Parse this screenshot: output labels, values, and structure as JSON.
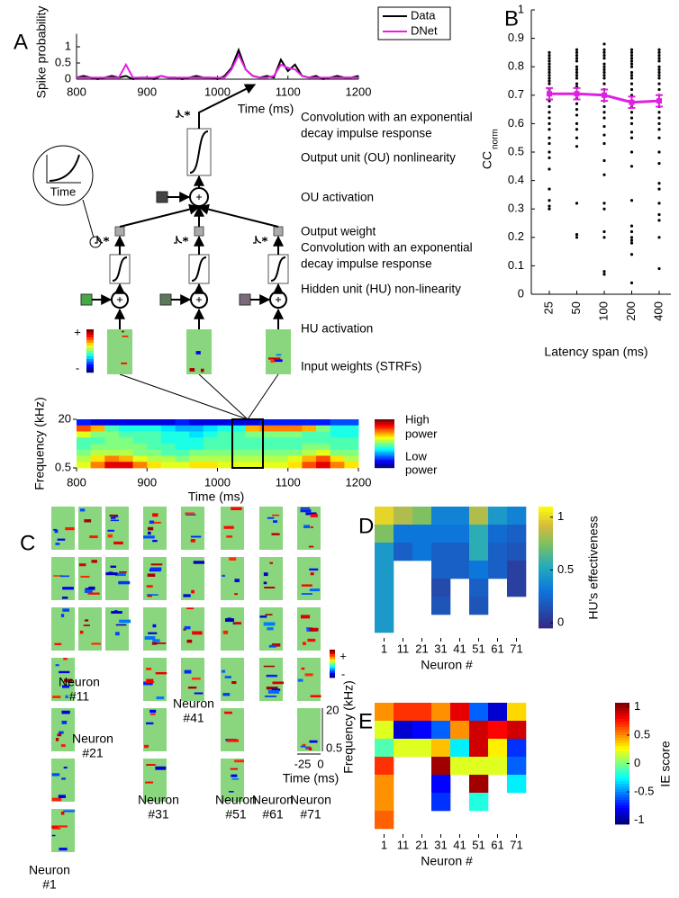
{
  "panel_labels": [
    "A",
    "B",
    "C",
    "D",
    "E"
  ],
  "chart_data": [
    {
      "type": "line",
      "xlabel": "Time (ms)",
      "ylabel": "Spike probability",
      "x": [
        800,
        810,
        820,
        830,
        840,
        850,
        860,
        870,
        880,
        890,
        900,
        910,
        920,
        930,
        940,
        950,
        960,
        970,
        980,
        990,
        1000,
        1010,
        1020,
        1030,
        1040,
        1050,
        1060,
        1070,
        1080,
        1090,
        1100,
        1110,
        1120,
        1130,
        1140,
        1150,
        1160,
        1170,
        1180,
        1190,
        1200
      ],
      "xlim": [
        800,
        1200
      ],
      "xticks": [
        800,
        900,
        1000,
        1100,
        1200
      ],
      "ylim": [
        0,
        1.4
      ],
      "yticks": [
        0,
        0.5,
        1
      ],
      "legend": "top right",
      "series": [
        {
          "name": "Data",
          "color": "#000000",
          "values": [
            0.05,
            0.1,
            0.05,
            0,
            0.05,
            0.1,
            0.05,
            0.1,
            0,
            0.05,
            0.05,
            0,
            0.1,
            0.05,
            0.05,
            0,
            0.05,
            0.1,
            0.05,
            0.05,
            0,
            0.1,
            0.35,
            0.9,
            0.3,
            0.1,
            0.05,
            0.1,
            0.05,
            0.6,
            0.25,
            0.45,
            0.1,
            0.05,
            0.1,
            0,
            0.05,
            0.1,
            0.05,
            0.05,
            0.1
          ]
        },
        {
          "name": "DNet",
          "color": "#e81ee8",
          "values": [
            0.05,
            0.05,
            0.05,
            0.05,
            0.05,
            0.05,
            0.05,
            0.45,
            0.05,
            0.05,
            0.05,
            0.05,
            0.1,
            0.05,
            0.05,
            0.05,
            0.05,
            0.05,
            0.05,
            0.05,
            0.05,
            0.05,
            0.3,
            0.75,
            0.3,
            0.1,
            0.05,
            0.05,
            0.1,
            0.45,
            0.35,
            0.3,
            0.1,
            0.05,
            0.05,
            0.05,
            0.05,
            0.05,
            0.05,
            0.05,
            0.05
          ]
        }
      ]
    },
    {
      "type": "heatmap",
      "xlabel": "Time (ms)",
      "ylabel": "Frequency (kHz)",
      "xlim": [
        800,
        1200
      ],
      "xticks": [
        800,
        900,
        1000,
        1100,
        1200
      ],
      "ylim": [
        0.5,
        20
      ],
      "yticks": [
        0.5,
        20
      ],
      "log_y": true,
      "colormap": "jet",
      "colorbar_labels": [
        [
          "High",
          "power"
        ],
        [
          "Low",
          "power"
        ]
      ],
      "values": [
        [
          0.15,
          0.1,
          0.1,
          0.1,
          0.1,
          0.1,
          0.1,
          0.15,
          0.1,
          0.1,
          0.1,
          0.1,
          0.1,
          0.15,
          0.15,
          0.15,
          0.15,
          0.15,
          0.2,
          0.2
        ],
        [
          0.8,
          0.7,
          0.45,
          0.4,
          0.4,
          0.4,
          0.35,
          0.3,
          0.3,
          0.35,
          0.4,
          0.4,
          0.7,
          0.75,
          0.75,
          0.75,
          0.7,
          0.5,
          0.4,
          0.4
        ],
        [
          0.6,
          0.5,
          0.5,
          0.45,
          0.45,
          0.45,
          0.4,
          0.4,
          0.35,
          0.4,
          0.45,
          0.45,
          0.5,
          0.5,
          0.5,
          0.5,
          0.45,
          0.45,
          0.4,
          0.4
        ],
        [
          0.45,
          0.45,
          0.5,
          0.5,
          0.45,
          0.45,
          0.4,
          0.4,
          0.4,
          0.45,
          0.45,
          0.45,
          0.45,
          0.45,
          0.45,
          0.45,
          0.45,
          0.45,
          0.45,
          0.45
        ],
        [
          0.45,
          0.5,
          0.5,
          0.5,
          0.5,
          0.45,
          0.45,
          0.4,
          0.4,
          0.45,
          0.45,
          0.45,
          0.45,
          0.45,
          0.45,
          0.45,
          0.5,
          0.5,
          0.45,
          0.45
        ],
        [
          0.5,
          0.55,
          0.55,
          0.55,
          0.5,
          0.5,
          0.45,
          0.45,
          0.5,
          0.5,
          0.5,
          0.5,
          0.5,
          0.5,
          0.5,
          0.5,
          0.55,
          0.6,
          0.5,
          0.5
        ],
        [
          0.55,
          0.65,
          0.75,
          0.7,
          0.6,
          0.55,
          0.55,
          0.5,
          0.55,
          0.55,
          0.55,
          0.55,
          0.55,
          0.55,
          0.55,
          0.6,
          0.7,
          0.8,
          0.65,
          0.55
        ],
        [
          0.6,
          0.75,
          0.9,
          0.9,
          0.75,
          0.65,
          0.6,
          0.6,
          0.65,
          0.65,
          0.6,
          0.6,
          0.6,
          0.6,
          0.6,
          0.65,
          0.8,
          0.9,
          0.75,
          0.65
        ]
      ]
    },
    {
      "type": "scatter",
      "xlabel": "Latency span (ms)",
      "ylabel": "CC",
      "ylabel_subscript": "norm",
      "categories": [
        25,
        50,
        100,
        200,
        400
      ],
      "ylim": [
        0,
        1
      ],
      "yticks": [
        0,
        0.1,
        0.2,
        0.3,
        0.4,
        0.5,
        0.6,
        0.7,
        0.8,
        0.9,
        1
      ],
      "points": [
        [
          0.85,
          0.84,
          0.83,
          0.82,
          0.81,
          0.8,
          0.79,
          0.78,
          0.77,
          0.76,
          0.75,
          0.74,
          0.72,
          0.7,
          0.68,
          0.66,
          0.64,
          0.62,
          0.6,
          0.58,
          0.55,
          0.53,
          0.5,
          0.48,
          0.44,
          0.37,
          0.33,
          0.31,
          0.3
        ],
        [
          0.86,
          0.85,
          0.84,
          0.83,
          0.82,
          0.8,
          0.79,
          0.78,
          0.77,
          0.76,
          0.74,
          0.73,
          0.71,
          0.69,
          0.67,
          0.65,
          0.63,
          0.6,
          0.58,
          0.55,
          0.52,
          0.32,
          0.21,
          0.2
        ],
        [
          0.88,
          0.86,
          0.85,
          0.84,
          0.83,
          0.81,
          0.8,
          0.79,
          0.78,
          0.77,
          0.76,
          0.74,
          0.72,
          0.7,
          0.68,
          0.66,
          0.64,
          0.62,
          0.59,
          0.56,
          0.53,
          0.47,
          0.42,
          0.32,
          0.3,
          0.22,
          0.2,
          0.08,
          0.07
        ],
        [
          0.86,
          0.85,
          0.84,
          0.83,
          0.82,
          0.81,
          0.8,
          0.78,
          0.77,
          0.76,
          0.74,
          0.72,
          0.7,
          0.68,
          0.66,
          0.64,
          0.62,
          0.6,
          0.57,
          0.55,
          0.5,
          0.45,
          0.33,
          0.24,
          0.22,
          0.2,
          0.19,
          0.18,
          0.14,
          0.04
        ],
        [
          0.86,
          0.85,
          0.84,
          0.83,
          0.82,
          0.8,
          0.79,
          0.78,
          0.77,
          0.76,
          0.74,
          0.72,
          0.7,
          0.68,
          0.66,
          0.64,
          0.62,
          0.6,
          0.58,
          0.55,
          0.5,
          0.46,
          0.39,
          0.37,
          0.32,
          0.28,
          0.26,
          0.2,
          0.09
        ]
      ],
      "point_color": "#000000",
      "mean": [
        0.705,
        0.705,
        0.7,
        0.675,
        0.68
      ],
      "error": [
        0.02,
        0.02,
        0.02,
        0.02,
        0.02
      ],
      "mean_color": "#e020e0"
    },
    {
      "type": "grid_heatmap",
      "xlabel": "Neuron #",
      "colorbar_label": "HU's effectiveness",
      "categories": [
        1,
        11,
        21,
        31,
        41,
        51,
        61,
        71
      ],
      "colormap": "parula",
      "clim": [
        -0.05,
        1.1
      ],
      "cticks": [
        0,
        0.5,
        1
      ],
      "values": [
        [
          1,
          0.75,
          0.45,
          0.45,
          0.45,
          0.45,
          0.45
        ],
        [
          0.85,
          0.3,
          0.2
        ],
        [
          0.75,
          0.3,
          0.3
        ],
        [
          0.35,
          0.3,
          0.2,
          0.2,
          0.1,
          0.15
        ],
        [
          0.35,
          0.3,
          0.2,
          0.2
        ],
        [
          0.85,
          0.55,
          0.55,
          0.3,
          0.2,
          0.15
        ],
        [
          0.45,
          0.25,
          0.2,
          0.2
        ],
        [
          0.35,
          0.2,
          0.15,
          0.05,
          0.05
        ]
      ]
    },
    {
      "type": "grid_heatmap",
      "xlabel": "Neuron #",
      "colorbar_label": "IE score",
      "categories": [
        1,
        11,
        21,
        31,
        41,
        51,
        61,
        71
      ],
      "colormap": "jet",
      "clim": [
        -1.07,
        1.07
      ],
      "cticks": [
        -1,
        -0.5,
        0,
        0.5,
        1
      ],
      "values": [
        [
          0.5,
          0.2,
          -0.1,
          0.7,
          0.5,
          0.5,
          0.6
        ],
        [
          0.7,
          -0.9,
          0.2
        ],
        [
          0.7,
          -0.8,
          0.2
        ],
        [
          0.5,
          -0.6,
          0.4,
          1,
          -0.8,
          -0.7
        ],
        [
          0.85,
          0.5,
          -0.3,
          0.2
        ],
        [
          -0.6,
          0.9,
          0.9,
          0.2,
          1,
          -0.2
        ],
        [
          -0.9,
          0.8,
          0.3,
          0.2
        ],
        [
          0.35,
          0.9,
          -0.7,
          -0.6,
          -0.3
        ]
      ]
    }
  ],
  "diagram": {
    "steps": [
      "Convolution with an exponential",
      "decay impulse response",
      "Output unit (OU) nonlinearity",
      "OU activation",
      "Output weight",
      "Convolution with an exponential",
      "decay impulse response",
      "Hidden unit (HU) non-linearity",
      "HU activation",
      "Input weights (STRFs)"
    ],
    "inset_label": "Time",
    "strf_colorbar": [
      "+",
      "-"
    ]
  },
  "strf_panel": {
    "neuron_labels": [
      [
        "Neuron",
        "#1"
      ],
      [
        "Neuron",
        "#11"
      ],
      [
        "Neuron",
        "#21"
      ],
      [
        "Neuron",
        "#31"
      ],
      [
        "Neuron",
        "#41"
      ],
      [
        "Neuron",
        "#51"
      ],
      [
        "Neuron",
        "#61"
      ],
      [
        "Neuron",
        "#71"
      ]
    ],
    "colorbar": [
      "+",
      "-"
    ],
    "yticks": [
      "20",
      "0.5"
    ],
    "xticks": [
      "-25",
      "0"
    ],
    "xlabel": "Time (ms)",
    "ylabel": "Frequency (kHz)"
  }
}
